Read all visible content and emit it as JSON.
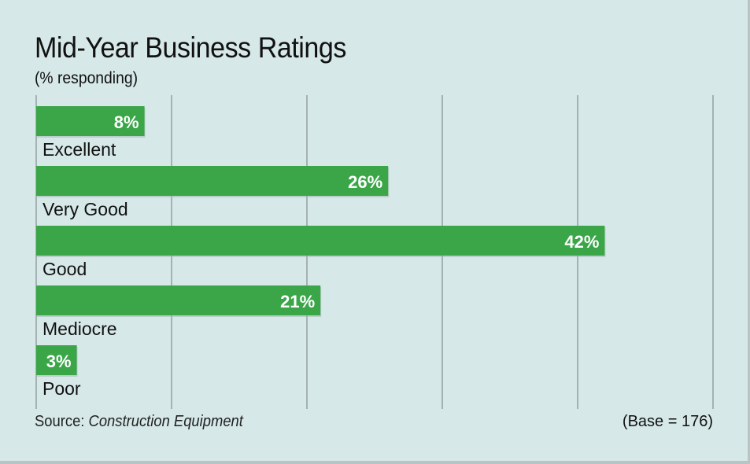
{
  "chart_data": {
    "type": "bar",
    "orientation": "horizontal",
    "title": "Mid-Year Business Ratings",
    "subtitle": "(% responding)",
    "categories": [
      "Excellent",
      "Very Good",
      "Good",
      "Mediocre",
      "Poor"
    ],
    "values": [
      8,
      26,
      42,
      21,
      3
    ],
    "value_labels": [
      "8%",
      "26%",
      "42%",
      "21%",
      "3%"
    ],
    "xlim": [
      0,
      50
    ],
    "grid": true,
    "bar_color": "#3aa648",
    "background_color": "#d6e8e8"
  },
  "footer": {
    "source_label": "Source: ",
    "source_name": "Construction Equipment",
    "base": "(Base = 176)"
  }
}
